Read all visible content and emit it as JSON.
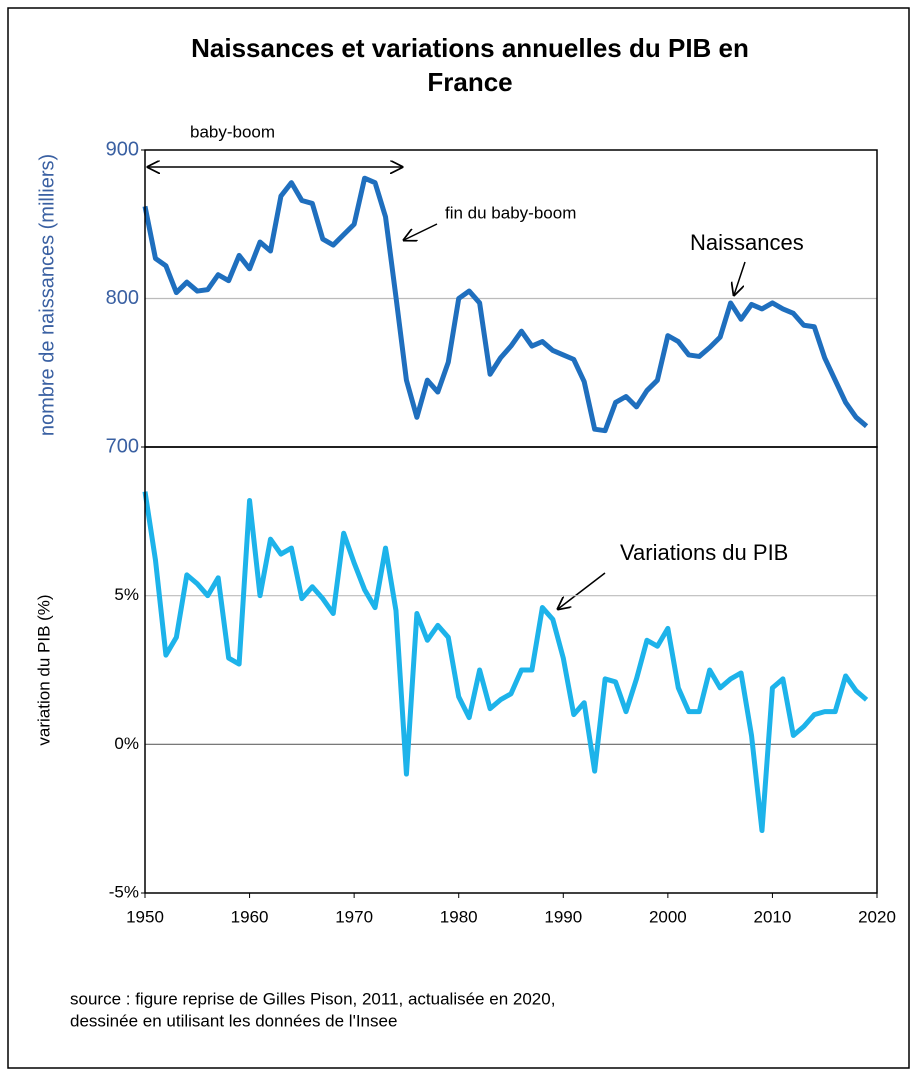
{
  "chart_data": [
    {
      "type": "line",
      "title": "Naissances et variations annuelles du PIB en France",
      "ylabel": "nombre de naissances (milliers)",
      "x": [
        1950,
        1951,
        1952,
        1953,
        1954,
        1955,
        1956,
        1957,
        1958,
        1959,
        1960,
        1961,
        1962,
        1963,
        1964,
        1965,
        1966,
        1967,
        1968,
        1969,
        1970,
        1971,
        1972,
        1973,
        1974,
        1975,
        1976,
        1977,
        1978,
        1979,
        1980,
        1981,
        1982,
        1983,
        1984,
        1985,
        1986,
        1987,
        1988,
        1989,
        1990,
        1991,
        1992,
        1993,
        1994,
        1995,
        1996,
        1997,
        1998,
        1999,
        2000,
        2001,
        2002,
        2003,
        2004,
        2005,
        2006,
        2007,
        2008,
        2009,
        2010,
        2011,
        2012,
        2013,
        2014,
        2015,
        2016,
        2017,
        2018,
        2019
      ],
      "series": [
        {
          "name": "Naissances",
          "color": "#1f6fbe",
          "values": [
            862,
            827,
            822,
            804,
            811,
            805,
            806,
            816,
            812,
            829,
            820,
            838,
            832,
            869,
            878,
            866,
            864,
            840,
            836,
            843,
            850,
            881,
            878,
            855,
            801,
            745,
            720,
            745,
            737,
            757,
            800,
            805,
            797,
            749,
            760,
            768,
            778,
            768,
            771,
            765,
            762,
            759,
            744,
            712,
            711,
            730,
            734,
            727,
            738,
            745,
            775,
            771,
            762,
            761,
            767,
            774,
            797,
            786,
            796,
            793,
            797,
            793,
            790,
            782,
            781,
            760,
            745,
            730,
            720,
            714
          ]
        }
      ],
      "xlim": [
        1950,
        2020
      ],
      "ylim": [
        700,
        900
      ],
      "yticks": [
        700,
        800,
        900
      ],
      "grid": true,
      "annotations": [
        "baby-boom",
        "fin du baby-boom"
      ]
    },
    {
      "type": "line",
      "ylabel": "variation du PIB (%)",
      "x": [
        1950,
        1951,
        1952,
        1953,
        1954,
        1955,
        1956,
        1957,
        1958,
        1959,
        1960,
        1961,
        1962,
        1963,
        1964,
        1965,
        1966,
        1967,
        1968,
        1969,
        1970,
        1971,
        1972,
        1973,
        1974,
        1975,
        1976,
        1977,
        1978,
        1979,
        1980,
        1981,
        1982,
        1983,
        1984,
        1985,
        1986,
        1987,
        1988,
        1989,
        1990,
        1991,
        1992,
        1993,
        1994,
        1995,
        1996,
        1997,
        1998,
        1999,
        2000,
        2001,
        2002,
        2003,
        2004,
        2005,
        2006,
        2007,
        2008,
        2009,
        2010,
        2011,
        2012,
        2013,
        2014,
        2015,
        2016,
        2017,
        2018,
        2019
      ],
      "series": [
        {
          "name": "Variations du PIB",
          "color": "#1db3ea",
          "values": [
            8.5,
            6.2,
            3.0,
            3.6,
            5.7,
            5.4,
            5.0,
            5.6,
            2.9,
            2.7,
            8.2,
            5.0,
            6.9,
            6.4,
            6.6,
            4.9,
            5.3,
            4.9,
            4.4,
            7.1,
            6.1,
            5.2,
            4.6,
            6.6,
            4.5,
            -1.0,
            4.4,
            3.5,
            4.0,
            3.6,
            1.6,
            0.9,
            2.5,
            1.2,
            1.5,
            1.7,
            2.5,
            2.5,
            4.6,
            4.2,
            2.9,
            1.0,
            1.4,
            -0.9,
            2.2,
            2.1,
            1.1,
            2.2,
            3.5,
            3.3,
            3.9,
            1.9,
            1.1,
            1.1,
            2.5,
            1.9,
            2.2,
            2.4,
            0.3,
            -2.9,
            1.9,
            2.2,
            0.3,
            0.6,
            1.0,
            1.1,
            1.1,
            2.3,
            1.8,
            1.5
          ]
        }
      ],
      "xlim": [
        1950,
        2020
      ],
      "xticks": [
        1950,
        1960,
        1970,
        1980,
        1990,
        2000,
        2010,
        2020
      ],
      "ylim": [
        -5,
        10
      ],
      "yticks": [
        {
          "value": -5,
          "label": "-5%"
        },
        {
          "value": 0,
          "label": "0%"
        },
        {
          "value": 5,
          "label": "5%"
        }
      ],
      "grid": true
    }
  ],
  "source": [
    "source : figure reprise de Gilles Pison, 2011, actualisée en 2020,",
    "dessinée en utilisant les données de l'Insee"
  ]
}
